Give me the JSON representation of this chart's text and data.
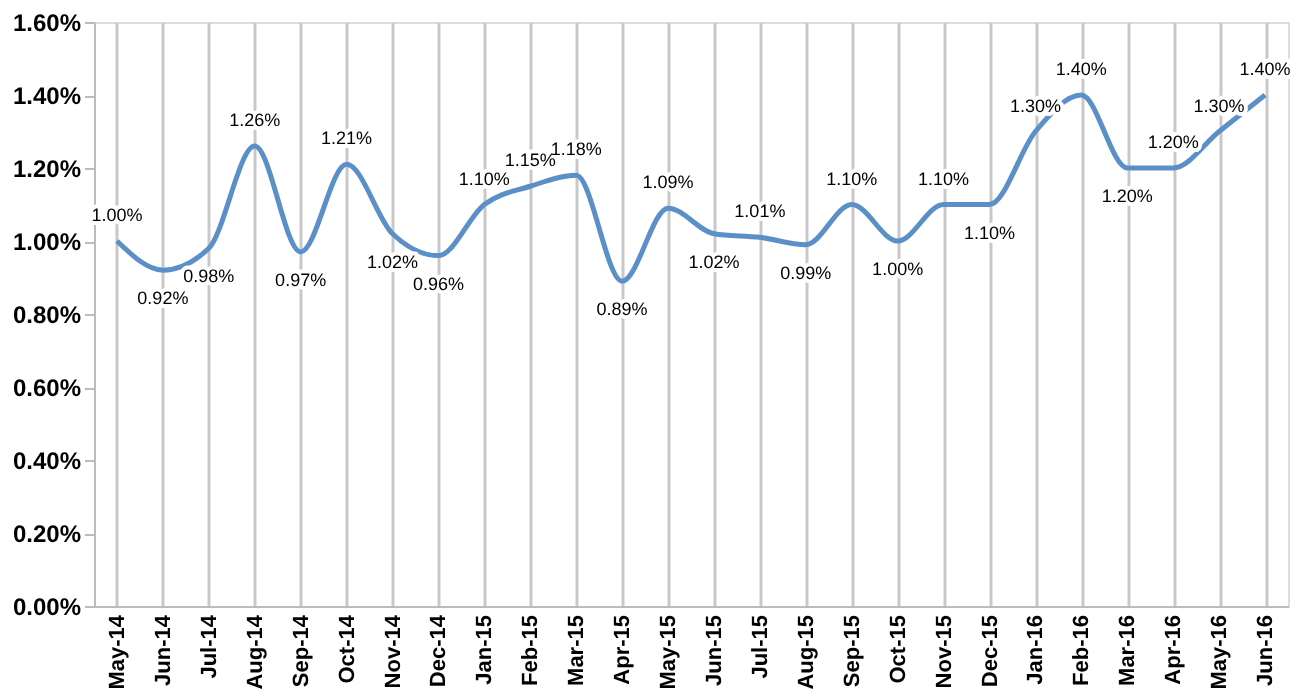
{
  "chart_data": {
    "type": "line",
    "categories": [
      "May-14",
      "Jun-14",
      "Jul-14",
      "Aug-14",
      "Sep-14",
      "Oct-14",
      "Nov-14",
      "Dec-14",
      "Jan-15",
      "Feb-15",
      "Mar-15",
      "Apr-15",
      "May-15",
      "Jun-15",
      "Jul-15",
      "Aug-15",
      "Sep-15",
      "Oct-15",
      "Nov-15",
      "Dec-15",
      "Jan-16",
      "Feb-16",
      "Mar-16",
      "Apr-16",
      "May-16",
      "Jun-16"
    ],
    "series": [
      {
        "color": "#5b8fc7",
        "values": [
          1.0,
          0.92,
          0.98,
          1.26,
          0.97,
          1.21,
          1.02,
          0.96,
          1.1,
          1.15,
          1.18,
          0.89,
          1.09,
          1.02,
          1.01,
          0.99,
          1.1,
          1.0,
          1.1,
          1.1,
          1.3,
          1.4,
          1.2,
          1.2,
          1.3,
          1.4
        ]
      }
    ],
    "value_labels": [
      "1.00%",
      "0.92%",
      "0.98%",
      "1.26%",
      "0.97%",
      "1.21%",
      "1.02%",
      "0.96%",
      "1.10%",
      "1.15%",
      "1.18%",
      "0.89%",
      "1.09%",
      "1.02%",
      "1.01%",
      "0.99%",
      "1.10%",
      "1.00%",
      "1.10%",
      "1.10%",
      "1.30%",
      "1.40%",
      "1.20%",
      "1.20%",
      "1.30%",
      "1.40%"
    ],
    "ylim": [
      0,
      1.6
    ],
    "yticks": [
      {
        "value": 0,
        "label": "0.00%"
      },
      {
        "value": 0.2,
        "label": "0.20%"
      },
      {
        "value": 0.4,
        "label": "0.40%"
      },
      {
        "value": 0.6,
        "label": "0.60%"
      },
      {
        "value": 0.8,
        "label": "0.80%"
      },
      {
        "value": 1.0,
        "label": "1.00%"
      },
      {
        "value": 1.2,
        "label": "1.20%"
      },
      {
        "value": 1.4,
        "label": "1.40%"
      },
      {
        "value": 1.6,
        "label": "1.60%"
      }
    ],
    "grid": "x",
    "marker": "none",
    "line_style": "solid"
  }
}
